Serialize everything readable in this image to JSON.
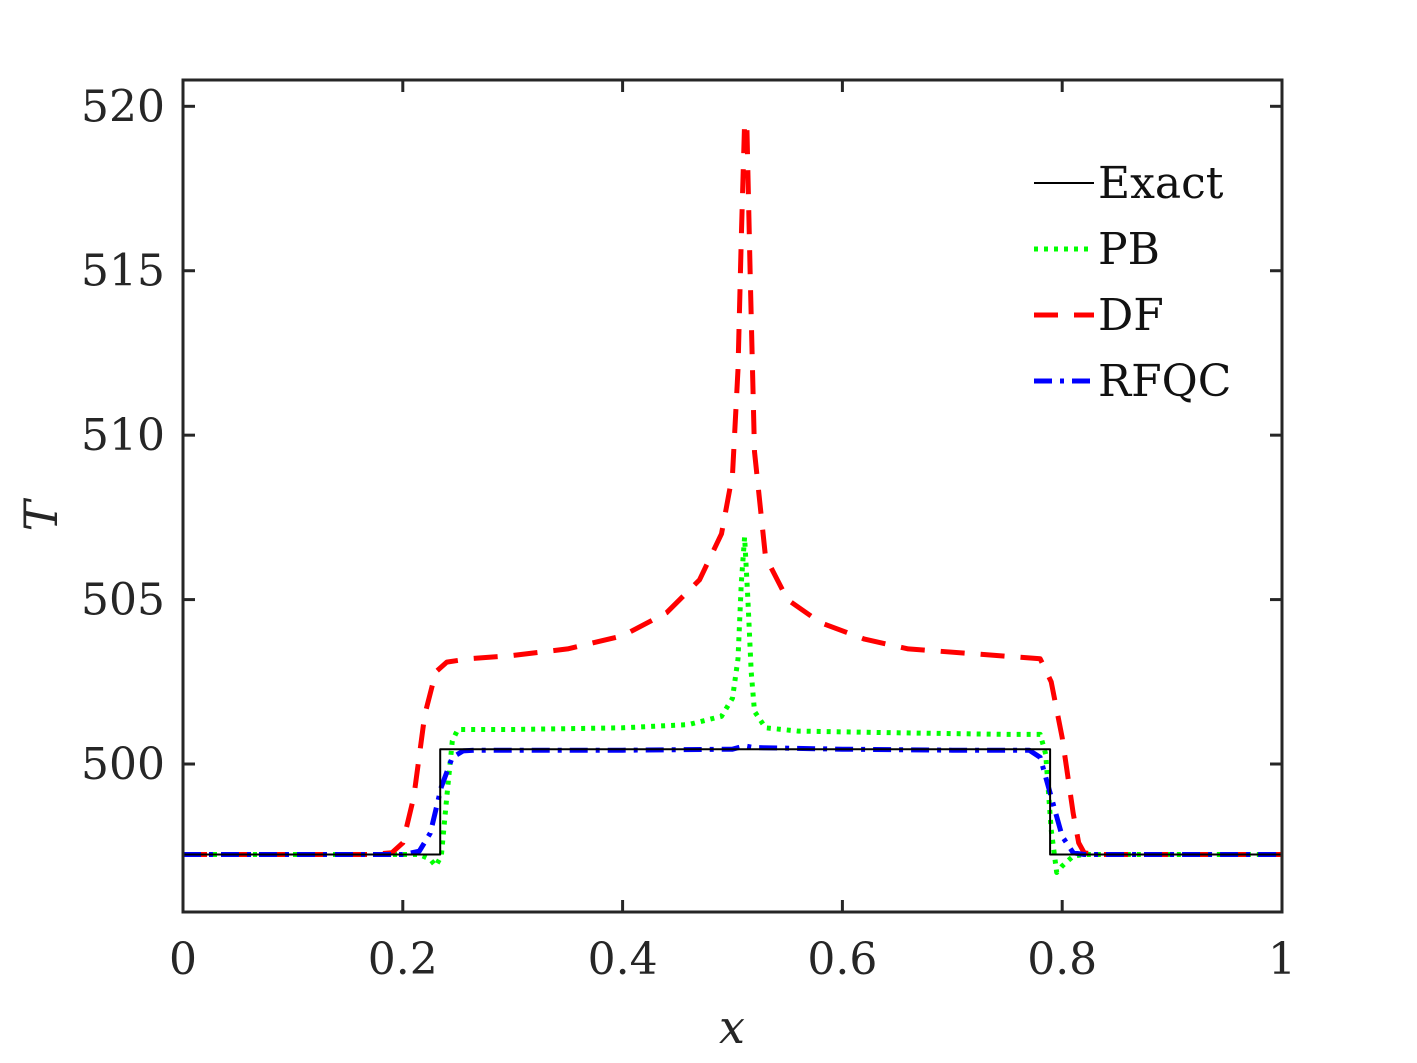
{
  "chart_data": {
    "type": "line",
    "title": "",
    "xlabel": "x",
    "ylabel": "T",
    "xlim": [
      0,
      1
    ],
    "ylim": [
      495.5,
      520.8
    ],
    "xticks": [
      0,
      0.2,
      0.4,
      0.6,
      0.8,
      1
    ],
    "xtick_labels": [
      "0",
      "0.2",
      "0.4",
      "0.6",
      "0.8",
      "1"
    ],
    "yticks": [
      500,
      505,
      510,
      515,
      520
    ],
    "ytick_labels": [
      "500",
      "505",
      "510",
      "515",
      "520"
    ],
    "grid": false,
    "legend_position": "top-right",
    "series": [
      {
        "name": "Exact",
        "color": "#000000",
        "style": "solid",
        "x": [
          0,
          0.234,
          0.234,
          0.789,
          0.789,
          1
        ],
        "y": [
          497.25,
          497.25,
          500.45,
          500.45,
          497.25,
          497.25
        ]
      },
      {
        "name": "PB",
        "color": "#00ff00",
        "style": "dotted",
        "x": [
          0,
          0.2,
          0.215,
          0.225,
          0.23,
          0.235,
          0.24,
          0.245,
          0.25,
          0.26,
          0.3,
          0.4,
          0.46,
          0.49,
          0.5,
          0.505,
          0.508,
          0.511,
          0.514,
          0.517,
          0.52,
          0.53,
          0.56,
          0.65,
          0.75,
          0.78,
          0.785,
          0.79,
          0.795,
          0.8,
          0.81,
          0.82,
          1
        ],
        "y": [
          497.25,
          497.25,
          497.25,
          497.1,
          496.9,
          497.2,
          499.0,
          500.7,
          501.05,
          501.05,
          501.05,
          501.1,
          501.2,
          501.45,
          502.0,
          503.2,
          505.5,
          506.9,
          505.0,
          502.8,
          501.6,
          501.1,
          501.0,
          500.95,
          500.9,
          500.9,
          500.3,
          498.0,
          496.7,
          496.9,
          497.2,
          497.25,
          497.25
        ]
      },
      {
        "name": "DF",
        "color": "#ff0000",
        "style": "dashed",
        "x": [
          0,
          0.17,
          0.19,
          0.2,
          0.21,
          0.22,
          0.23,
          0.24,
          0.26,
          0.3,
          0.35,
          0.4,
          0.44,
          0.47,
          0.49,
          0.5,
          0.505,
          0.508,
          0.511,
          0.513,
          0.516,
          0.52,
          0.53,
          0.55,
          0.58,
          0.62,
          0.66,
          0.72,
          0.78,
          0.79,
          0.8,
          0.81,
          0.815,
          0.82,
          0.83,
          0.85,
          1
        ],
        "y": [
          497.25,
          497.25,
          497.3,
          497.6,
          499.0,
          501.5,
          502.8,
          503.1,
          503.2,
          503.3,
          503.5,
          503.9,
          504.6,
          505.6,
          507.0,
          508.8,
          512.0,
          516.0,
          519.5,
          519.5,
          515.0,
          509.5,
          506.3,
          505.0,
          504.3,
          503.8,
          503.5,
          503.35,
          503.2,
          502.5,
          500.8,
          498.5,
          497.6,
          497.3,
          497.25,
          497.25,
          497.25
        ]
      },
      {
        "name": "RFQC",
        "color": "#0000ff",
        "style": "dashdot",
        "x": [
          0,
          0.2,
          0.215,
          0.225,
          0.235,
          0.245,
          0.255,
          0.265,
          0.3,
          0.4,
          0.5,
          0.511,
          0.52,
          0.6,
          0.7,
          0.77,
          0.78,
          0.79,
          0.8,
          0.81,
          0.82,
          1
        ],
        "y": [
          497.25,
          497.25,
          497.35,
          497.9,
          499.3,
          500.2,
          500.4,
          500.42,
          500.42,
          500.42,
          500.45,
          500.55,
          500.5,
          500.45,
          500.42,
          500.42,
          500.2,
          499.0,
          497.8,
          497.3,
          497.25,
          497.25
        ]
      }
    ]
  }
}
